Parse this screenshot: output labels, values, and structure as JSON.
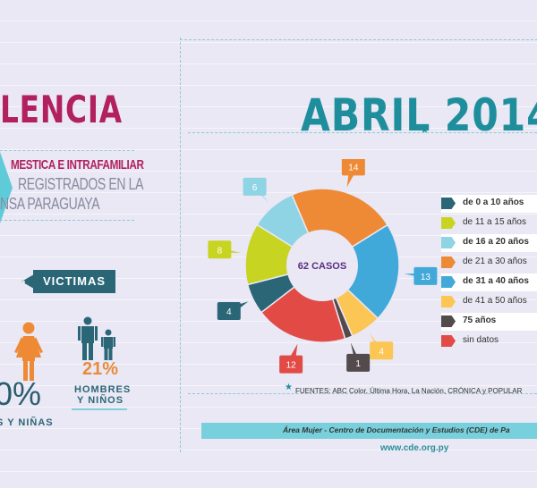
{
  "header": {
    "title": "LENCIA",
    "subtitle_line1": "MESTICA E INTRAFAMILIAR",
    "subtitle_line2": "REGISTRADOS EN LA",
    "subtitle_line3": "NSA PARAGUAYA"
  },
  "victims": {
    "badge": "VICTIMAS",
    "female_pct": "0%",
    "female_caption": "S Y NIÑAS",
    "male_pct": "21%",
    "male_caption_1": "HOMBRES",
    "male_caption_2": "Y NIÑOS"
  },
  "month_title": "ABRIL 2014",
  "chart_data": {
    "type": "pie",
    "center_label": "62 CASOS",
    "slices": [
      {
        "label": "de 0 a 10 años",
        "value": 4,
        "color": "#2b6677",
        "bold": true
      },
      {
        "label": "de 11 a 15 años",
        "value": 8,
        "color": "#c8d422",
        "bold": false
      },
      {
        "label": "de 16 a 20 años",
        "value": 6,
        "color": "#8fd4e4",
        "bold": true
      },
      {
        "label": "de 21 a 30 años",
        "value": 14,
        "color": "#ee8a35",
        "bold": false
      },
      {
        "label": "de 31 a 40 años",
        "value": 13,
        "color": "#41a9d9",
        "bold": true
      },
      {
        "label": "de 41 a 50 años",
        "value": 4,
        "color": "#fcc654",
        "bold": false
      },
      {
        "label": "75 años",
        "value": 1,
        "color": "#524a4b",
        "bold": true
      },
      {
        "label": "sin datos",
        "value": 12,
        "color": "#e24a46",
        "bold": false
      }
    ]
  },
  "footer": {
    "sources": "FUENTES: ABC Color, Última Hora, La Nación, CRÓNICA y POPULAR",
    "credit": "Área Mujer - Centro de Documentación y Estudios (CDE) de Pa",
    "website": "www.cde.org.py"
  }
}
